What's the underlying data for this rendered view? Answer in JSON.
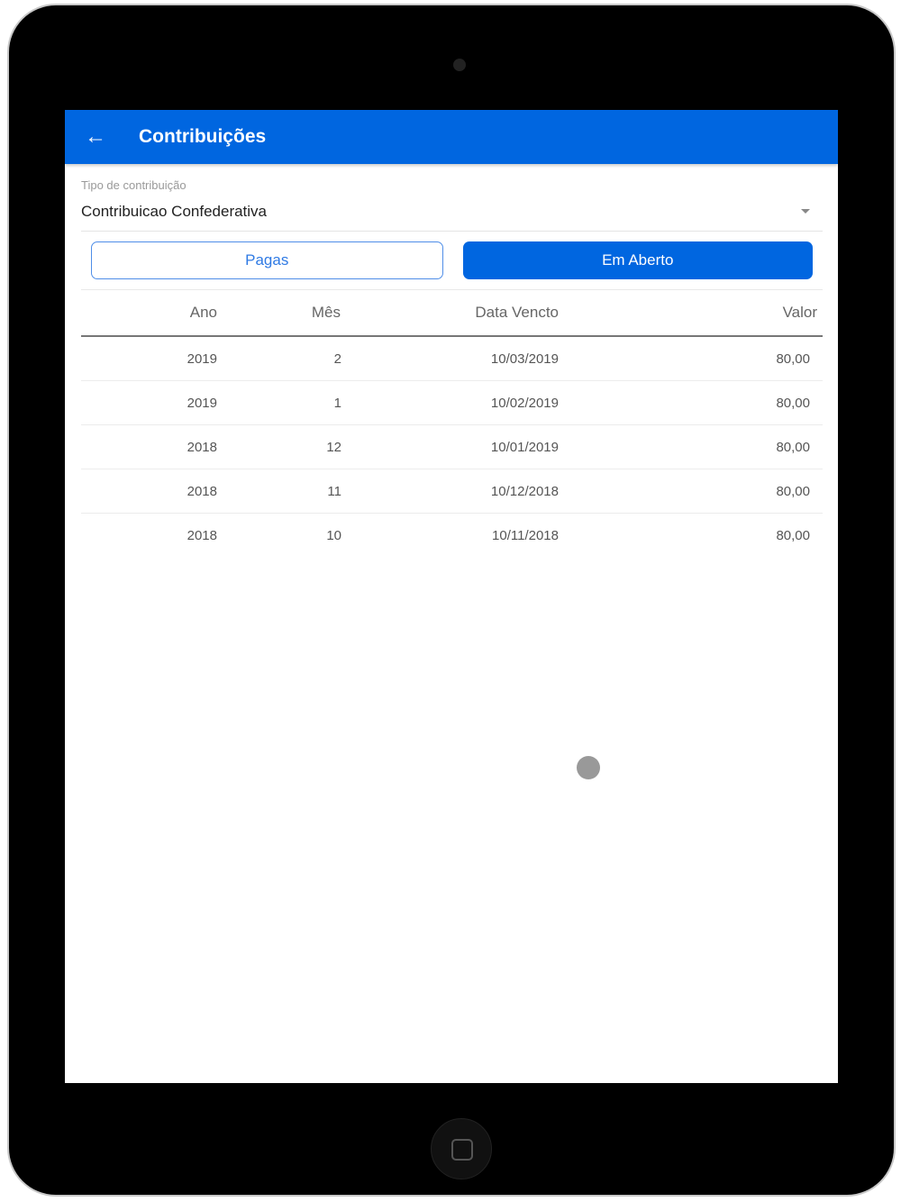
{
  "header": {
    "title": "Contribuições",
    "back_icon": "arrow-left-icon"
  },
  "filter": {
    "label": "Tipo de contribuição",
    "value": "Contribuicao Confederativa"
  },
  "tabs": [
    {
      "label": "Pagas",
      "active": false
    },
    {
      "label": "Em Aberto",
      "active": true
    }
  ],
  "table": {
    "columns": [
      "Ano",
      "Mês",
      "Data Vencto",
      "Valor"
    ],
    "rows": [
      [
        "2019",
        "2",
        "10/03/2019",
        "80,00"
      ],
      [
        "2019",
        "1",
        "10/02/2019",
        "80,00"
      ],
      [
        "2018",
        "12",
        "10/01/2019",
        "80,00"
      ],
      [
        "2018",
        "11",
        "10/12/2018",
        "80,00"
      ],
      [
        "2018",
        "10",
        "10/11/2018",
        "80,00"
      ]
    ]
  },
  "colors": {
    "primary": "#0066e0"
  }
}
